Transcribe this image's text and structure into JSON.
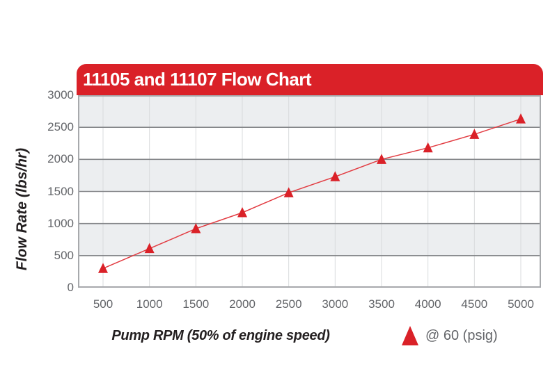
{
  "header": {
    "title": "11105 and 11107 Flow Chart"
  },
  "legend": {
    "label": "@ 60 (psig)"
  },
  "chart_data": {
    "type": "line",
    "title": "11105 and 11107 Flow Chart",
    "xlabel": "Pump RPM (50% of engine speed)",
    "ylabel": "Flow Rate (lbs/hr)",
    "x": [
      500,
      1000,
      1500,
      2000,
      2500,
      3000,
      3500,
      4000,
      4500,
      5000
    ],
    "series": [
      {
        "name": "@ 60 (psig)",
        "marker": "triangle",
        "color": "#DA2128",
        "line_color": "#E23C42",
        "values": [
          300,
          610,
          920,
          1170,
          1480,
          1730,
          2000,
          2180,
          2390,
          2630
        ]
      }
    ],
    "xticks": [
      500,
      1000,
      1500,
      2000,
      2500,
      3000,
      3500,
      4000,
      4500,
      5000
    ],
    "yticks": [
      0,
      500,
      1000,
      1500,
      2000,
      2500,
      3000
    ],
    "ylim": [
      0,
      3000
    ],
    "grid": "horizontal-major-with-faint-vertical",
    "band_fill": "alternating horizontal bands, gray on top band",
    "legend_position": "bottom-right-below-axis"
  },
  "colors": {
    "header_red": "#DA2128",
    "marker_red": "#DA2128",
    "line_red": "#E23C42",
    "band_gray": "#ECEEF0",
    "band_white": "#FFFFFF",
    "grid_dark": "#85878A",
    "grid_light": "#D9DBDD",
    "plot_border": "#A7A9AC",
    "tick_text": "#636569",
    "axis_title_text": "#231F20",
    "header_text": "#FFFFFF"
  }
}
